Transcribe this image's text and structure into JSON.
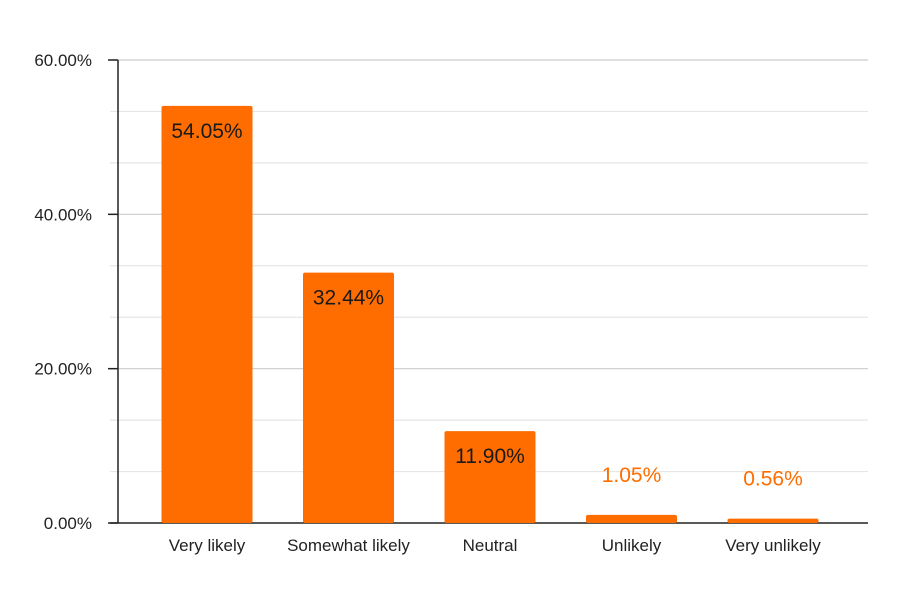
{
  "chart_data": {
    "type": "bar",
    "title": "",
    "xlabel": "",
    "ylabel": "",
    "categories": [
      "Very likely",
      "Somewhat likely",
      "Neutral",
      "Unlikely",
      "Very unlikely"
    ],
    "values": [
      54.05,
      32.44,
      11.9,
      1.05,
      0.56
    ],
    "data_labels": [
      "54.05%",
      "32.44%",
      "11.90%",
      "1.05%",
      "0.56%"
    ],
    "ylim": [
      0,
      60
    ],
    "yticks": [
      0,
      20,
      40,
      60
    ],
    "ytick_labels": [
      "0.00%",
      "20.00%",
      "40.00%",
      "60.00%"
    ],
    "grid": true,
    "legend": "none",
    "colors": {
      "bar": "#ff6d00",
      "label_inside": "#1a1a1a",
      "label_outside": "#ff6d00",
      "grid_major": "#cccccc",
      "grid_minor": "#e6e6e6",
      "axis": "#222222"
    }
  }
}
